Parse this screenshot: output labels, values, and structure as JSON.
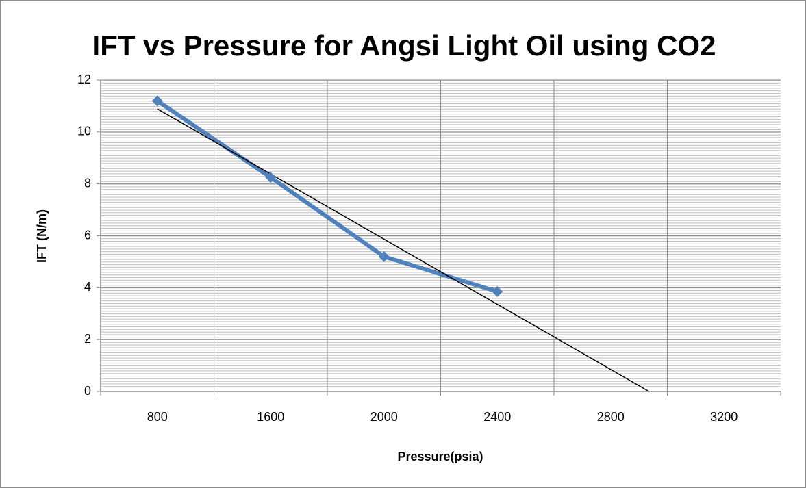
{
  "chart_data": {
    "type": "line",
    "title": "IFT vs Pressure for Angsi Light Oil using CO2",
    "x_label": "Pressure(psia)",
    "y_label": "IFT (N/m)",
    "categories": [
      "800",
      "1600",
      "2000",
      "2400",
      "2800",
      "3200"
    ],
    "series": [
      {
        "name": "IFT",
        "color": "#4f81bd",
        "values": [
          11.2,
          8.25,
          5.2,
          3.85,
          null,
          null
        ]
      }
    ],
    "trendline": "linear",
    "trendline_color": "#000000",
    "ylim": [
      0,
      12
    ],
    "yticks": [
      0,
      2,
      4,
      6,
      8,
      10,
      12
    ],
    "grid": true
  }
}
